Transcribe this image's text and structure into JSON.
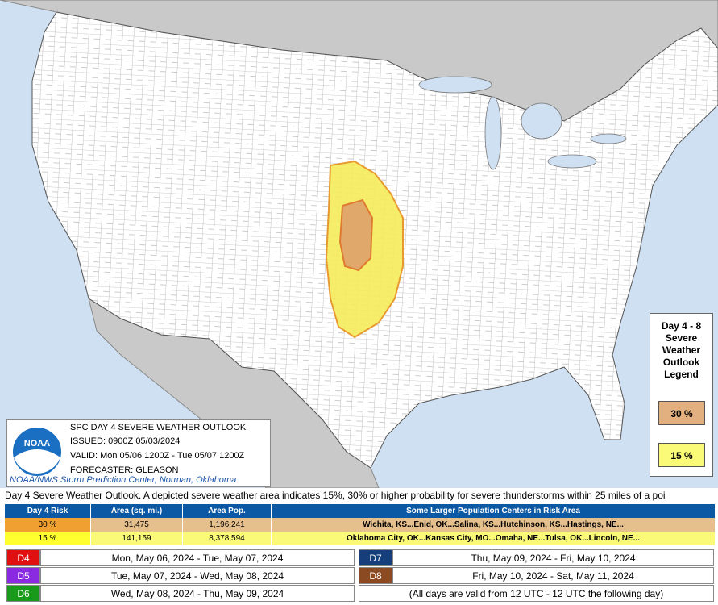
{
  "map": {
    "info_box": {
      "logo_text": "NOAA",
      "title": "SPC DAY 4 SEVERE WEATHER OUTLOOK",
      "issued": "ISSUED: 0900Z 05/03/2024",
      "valid": "VALID: Mon 05/06 1200Z - Tue 05/07 1200Z",
      "forecaster": "FORECASTER: GLEASON",
      "credit": "NOAA/NWS Storm Prediction Center, Norman, Oklahoma"
    },
    "legend": {
      "title": "Day 4 - 8 Severe Weather Outlook Legend",
      "items": [
        "30 %",
        "15 %"
      ]
    }
  },
  "description": "Day 4 Severe Weather Outlook. A depicted severe weather area indicates 15%, 30% or higher probability for severe thunderstorms within 25 miles of a poi",
  "risk_table": {
    "headers": [
      "Day 4 Risk",
      "Area (sq. mi.)",
      "Area Pop.",
      "Some Larger Population Centers in Risk Area"
    ],
    "rows": [
      [
        "30 %",
        "31,475",
        "1,196,241",
        "Wichita, KS...Enid, OK...Salina, KS...Hutchinson, KS...Hastings, NE..."
      ],
      [
        "15 %",
        "141,159",
        "8,378,594",
        "Oklahoma City, OK...Kansas City, MO...Omaha, NE...Tulsa, OK...Lincoln, NE..."
      ]
    ]
  },
  "days": [
    {
      "label": "D4",
      "dates": "Mon, May 06, 2024 - Tue, May 07, 2024"
    },
    {
      "label": "D5",
      "dates": "Tue, May 07, 2024 - Wed, May 08, 2024"
    },
    {
      "label": "D6",
      "dates": "Wed, May 08, 2024 - Thu, May 09, 2024"
    },
    {
      "label": "D7",
      "dates": "Thu, May 09, 2024 - Fri, May 10, 2024"
    },
    {
      "label": "D8",
      "dates": "Fri, May 10, 2024 - Sat, May 11, 2024"
    }
  ],
  "note": "(All days are valid from 12 UTC - 12 UTC the following day)"
}
